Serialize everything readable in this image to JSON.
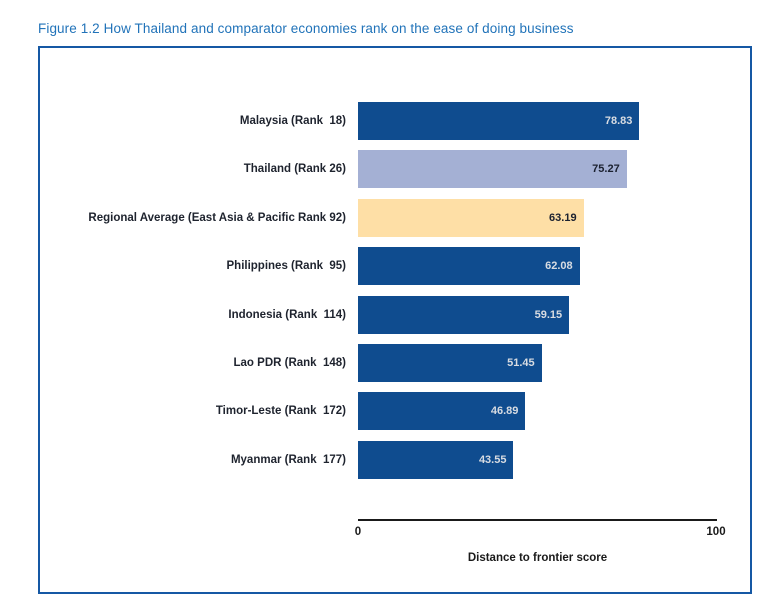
{
  "figure": {
    "title": "Figure 1.2 How Thailand and comparator economies rank on the ease of doing business"
  },
  "chart_data": {
    "type": "bar",
    "orientation": "horizontal",
    "title": "Figure 1.2 How Thailand and comparator economies rank on the ease of doing business",
    "xlabel": "Distance to frontier score",
    "ylabel": "",
    "xlim": [
      0,
      100
    ],
    "x_ticks": [
      "0",
      "100"
    ],
    "grid": false,
    "legend": false,
    "value_label_position": "inside-end",
    "categories": [
      "Malaysia (Rank  18)",
      "Thailand (Rank 26)",
      "Regional Average (East Asia & Pacific Rank 92)",
      "Philippines (Rank  95)",
      "Indonesia (Rank  114)",
      "Lao PDR (Rank  148)",
      "Timor-Leste (Rank  172)",
      "Myanmar (Rank  177)"
    ],
    "values": [
      78.83,
      75.27,
      63.19,
      62.08,
      59.15,
      51.45,
      46.89,
      43.55
    ],
    "bars": [
      {
        "label": "Malaysia (Rank  18)",
        "value": 78.83,
        "value_label": "78.83",
        "bar_color": "#0F4C8F",
        "value_text_color": "#D8DCE2"
      },
      {
        "label": "Thailand (Rank 26)",
        "value": 75.27,
        "value_label": "75.27",
        "bar_color": "#A4B0D4",
        "value_text_color": "#1B2130"
      },
      {
        "label": "Regional Average (East Asia & Pacific Rank 92)",
        "value": 63.19,
        "value_label": "63.19",
        "bar_color": "#FEDFA6",
        "value_text_color": "#1B2130"
      },
      {
        "label": "Philippines (Rank  95)",
        "value": 62.08,
        "value_label": "62.08",
        "bar_color": "#0F4C8F",
        "value_text_color": "#D8DCE2"
      },
      {
        "label": "Indonesia (Rank  114)",
        "value": 59.15,
        "value_label": "59.15",
        "bar_color": "#0F4C8F",
        "value_text_color": "#D8DCE2"
      },
      {
        "label": "Lao PDR (Rank  148)",
        "value": 51.45,
        "value_label": "51.45",
        "bar_color": "#0F4C8F",
        "value_text_color": "#D8DCE2"
      },
      {
        "label": "Timor-Leste (Rank  172)",
        "value": 46.89,
        "value_label": "46.89",
        "bar_color": "#0F4C8F",
        "value_text_color": "#D8DCE2"
      },
      {
        "label": "Myanmar (Rank  177)",
        "value": 43.55,
        "value_label": "43.55",
        "bar_color": "#0F4C8F",
        "value_text_color": "#D8DCE2"
      }
    ]
  },
  "colors": {
    "title_text": "#2173B9",
    "panel_border": "#1558A4",
    "background": "#FFFFFF",
    "category_label_text": "#1E232E",
    "bar_dark_blue": "#0F4C8F",
    "bar_light_blue": "#A4B0D4",
    "bar_light_yellow": "#FEDFA6",
    "axis_line": "#1A1A1A"
  }
}
